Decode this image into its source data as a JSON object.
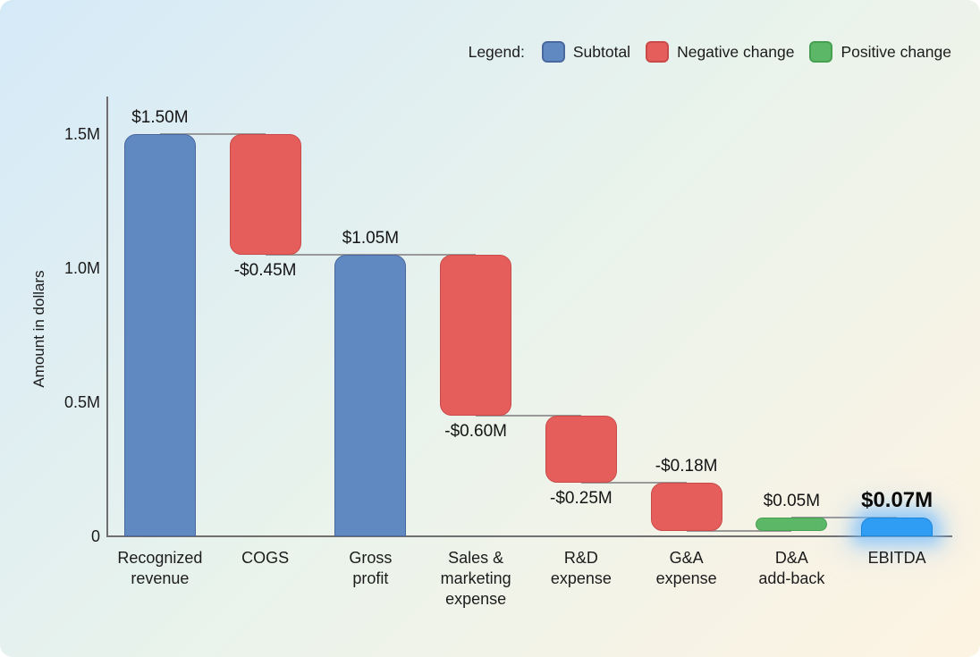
{
  "chart_data": {
    "type": "bar",
    "subtype": "waterfall",
    "ylabel": "Amount in dollars",
    "ylim": [
      0,
      1.5
    ],
    "grid": false,
    "yticks": [
      {
        "label": "0",
        "value": 0
      },
      {
        "label": "0.5M",
        "value": 0.5
      },
      {
        "label": "1.0M",
        "value": 1.0
      },
      {
        "label": "1.5M",
        "value": 1.5
      }
    ],
    "legend": {
      "title": "Legend:",
      "position": "top-right",
      "items": [
        {
          "label": "Subtotal",
          "kind": "subtotal"
        },
        {
          "label": "Negative change",
          "kind": "negative"
        },
        {
          "label": "Positive change",
          "kind": "positive"
        }
      ]
    },
    "bars": [
      {
        "label": "Recognized revenue",
        "lines": "Recognized\nrevenue",
        "value_label": "$1.50M",
        "start": 0,
        "end": 1.5,
        "kind": "subtotal",
        "value_label_position": "above",
        "highlighted": false
      },
      {
        "label": "COGS",
        "lines": "COGS",
        "value_label": "-$0.45M",
        "start": 1.5,
        "end": 1.05,
        "kind": "negative",
        "value_label_position": "below",
        "highlighted": false
      },
      {
        "label": "Gross profit",
        "lines": "Gross\nprofit",
        "value_label": "$1.05M",
        "start": 0,
        "end": 1.05,
        "kind": "subtotal",
        "value_label_position": "above",
        "highlighted": false
      },
      {
        "label": "Sales & marketing expense",
        "lines": "Sales &\nmarketing\nexpense",
        "value_label": "-$0.60M",
        "start": 1.05,
        "end": 0.45,
        "kind": "negative",
        "value_label_position": "below",
        "highlighted": false
      },
      {
        "label": "R&D expense",
        "lines": "R&D\nexpense",
        "value_label": "-$0.25M",
        "start": 0.45,
        "end": 0.2,
        "kind": "negative",
        "value_label_position": "below",
        "highlighted": false
      },
      {
        "label": "G&A expense",
        "lines": "G&A\nexpense",
        "value_label": "-$0.18M",
        "start": 0.2,
        "end": 0.02,
        "kind": "negative",
        "value_label_position": "above",
        "highlighted": false
      },
      {
        "label": "D&A add-back",
        "lines": "D&A\nadd-back",
        "value_label": "$0.05M",
        "start": 0.02,
        "end": 0.07,
        "kind": "positive",
        "value_label_position": "above",
        "highlighted": false
      },
      {
        "label": "EBITDA",
        "lines": "EBITDA",
        "value_label": "$0.07M",
        "start": 0,
        "end": 0.07,
        "kind": "total",
        "value_label_position": "above",
        "highlighted": true
      }
    ],
    "colors": {
      "subtotal": "#6189c1",
      "subtotal_border": "#49689e",
      "negative": "#e55e5c",
      "negative_border": "#c94b49",
      "positive": "#5cb867",
      "positive_border": "#46a050",
      "total": "#2e9df3",
      "total_border": "#1e86d8",
      "total_glow": "rgba(110,185,255,0.6)",
      "axis": "#6f6f6f",
      "connector": "#999999",
      "text": "#1c1c1c"
    }
  }
}
